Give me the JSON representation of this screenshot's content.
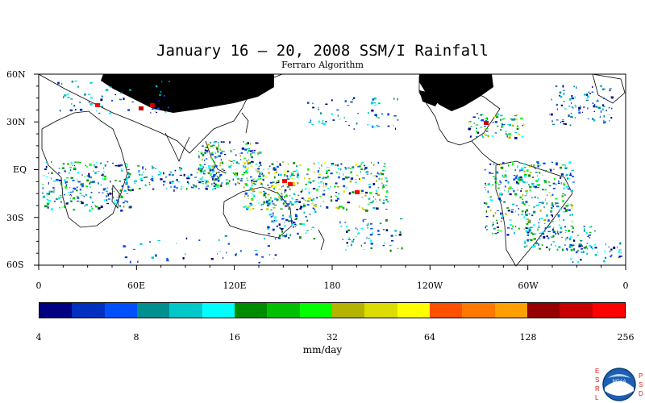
{
  "map": {
    "title": "January 16 – 20, 2008 SSM/I Rainfall",
    "subtitle": "Ferraro Algorithm",
    "latitude_labels": [
      "60N",
      "30N",
      "EQ",
      "30S",
      "60S"
    ],
    "longitude_labels": [
      "0",
      "60E",
      "120E",
      "180",
      "120W",
      "60W",
      "0"
    ],
    "colorbar": {
      "tick_labels": [
        "4",
        "8",
        "16",
        "32",
        "64",
        "128",
        "256"
      ],
      "unit": "mm/day",
      "colors": [
        "#000080",
        "#0030c0",
        "#0050ff",
        "#009090",
        "#00c8c8",
        "#00ffff",
        "#008c00",
        "#00c000",
        "#00ff00",
        "#b4b400",
        "#dcdc00",
        "#ffff00",
        "#ff5000",
        "#ff7800",
        "#ffa000",
        "#960000",
        "#c80000",
        "#ff0000"
      ]
    },
    "no_data_color": "#000000"
  },
  "logo": {
    "name": "noaa-logo",
    "left_letters": [
      "E",
      "S",
      "R",
      "L"
    ],
    "right_letters": [
      "P",
      "S",
      "D"
    ],
    "text": "NOAA"
  }
}
